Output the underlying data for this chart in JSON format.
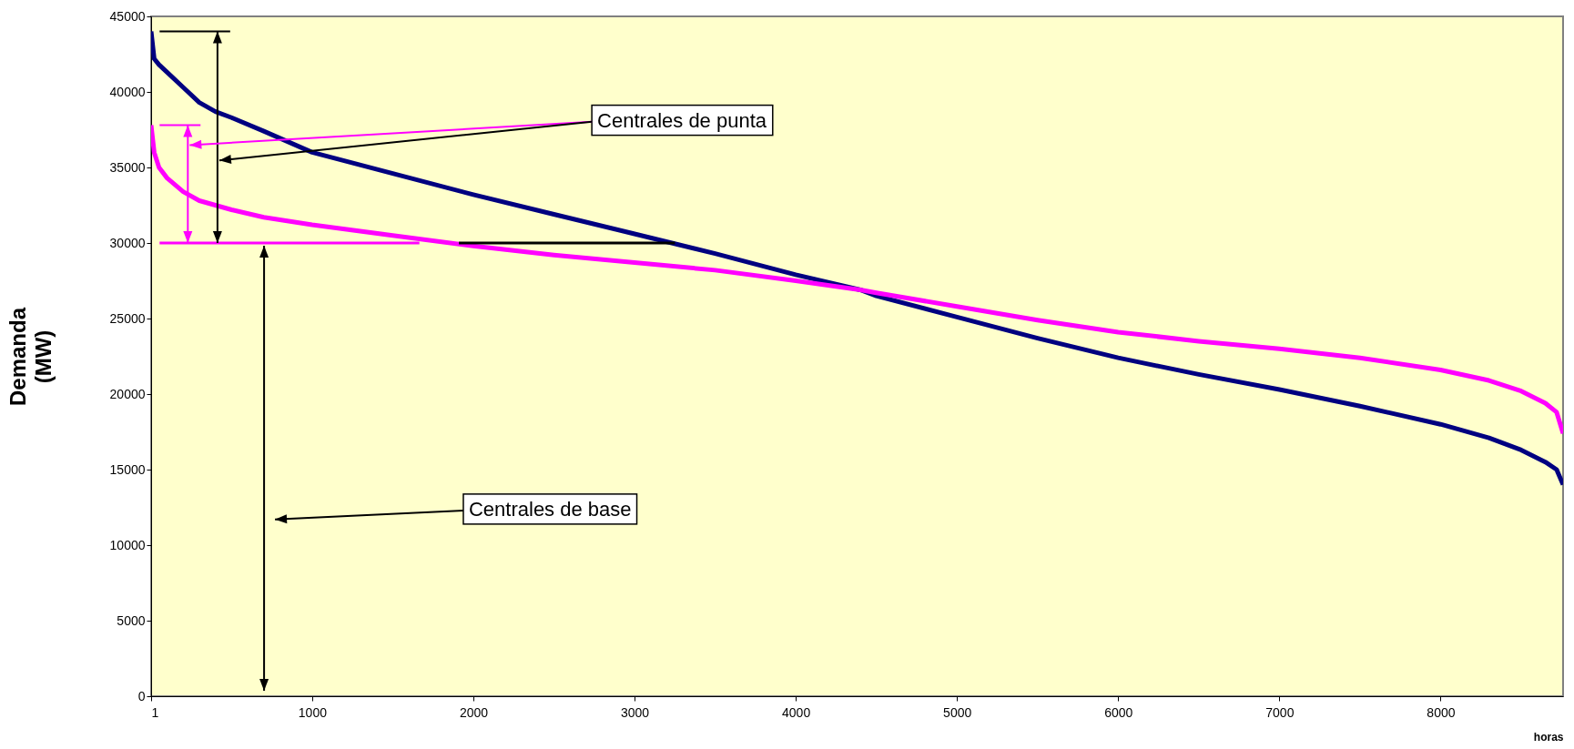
{
  "chart_data": {
    "type": "line",
    "xlabel": "horas",
    "ylabel": "Demanda (MW)",
    "x": [
      1,
      20,
      50,
      100,
      200,
      300,
      400,
      500,
      700,
      1000,
      1500,
      2000,
      2500,
      3000,
      3500,
      4000,
      4400,
      4500,
      5000,
      5500,
      6000,
      6500,
      7000,
      7500,
      8000,
      8300,
      8500,
      8650,
      8720,
      8760
    ],
    "series": [
      {
        "color": "#000080",
        "values": [
          44000,
          42200,
          41800,
          41300,
          40300,
          39300,
          38700,
          38300,
          37400,
          36000,
          34600,
          33200,
          31900,
          30600,
          29300,
          27900,
          26900,
          26500,
          25100,
          23700,
          22400,
          21300,
          20300,
          19200,
          18000,
          17100,
          16300,
          15500,
          15000,
          14000
        ]
      },
      {
        "color": "#ff00ff",
        "values": [
          37800,
          36000,
          35000,
          34300,
          33400,
          32800,
          32500,
          32200,
          31700,
          31200,
          30500,
          29800,
          29200,
          28700,
          28200,
          27500,
          26900,
          26700,
          25800,
          24900,
          24100,
          23500,
          23000,
          22400,
          21600,
          20900,
          20200,
          19400,
          18800,
          17400
        ]
      }
    ],
    "xlim": [
      1,
      8760
    ],
    "xticks": [
      1,
      1000,
      2000,
      3000,
      4000,
      5000,
      6000,
      7000,
      8000
    ],
    "ylim": [
      0,
      45000
    ],
    "yticks": [
      0,
      5000,
      10000,
      15000,
      20000,
      25000,
      30000,
      35000,
      40000,
      45000
    ],
    "grid": false,
    "ref_lines": [
      {
        "axis": "y",
        "value": 30000,
        "color": "#ff00ff"
      }
    ],
    "annotations": [
      "Centrales de punta",
      "Centrales de base"
    ]
  }
}
